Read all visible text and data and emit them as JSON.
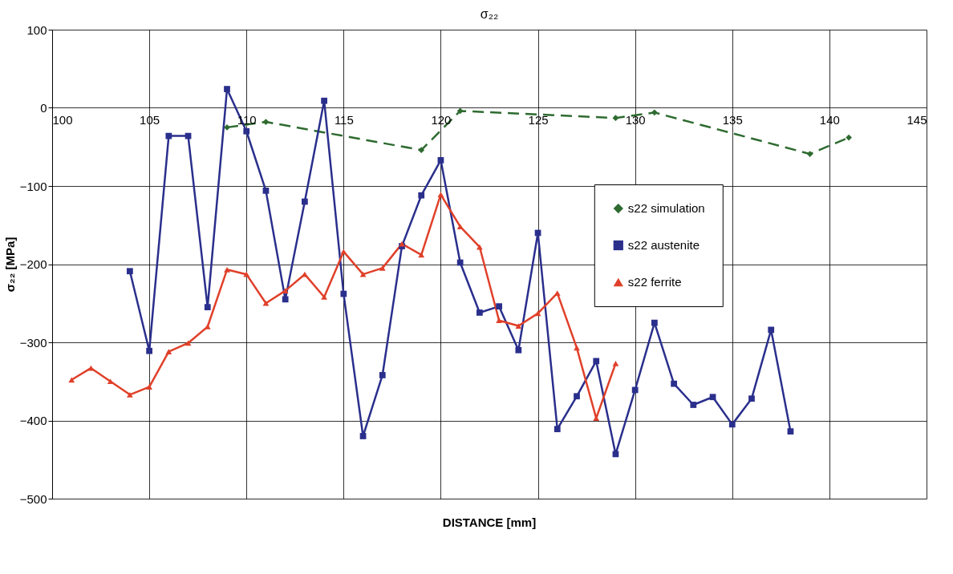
{
  "chart_data": {
    "type": "line",
    "title": "σ₂₂",
    "xlabel": "DISTANCE [mm]",
    "ylabel": "σ₂₂ [MPa]",
    "xlim": [
      100,
      145
    ],
    "xticks": [
      100,
      105,
      110,
      115,
      120,
      125,
      130,
      135,
      140,
      145
    ],
    "ylim": [
      -500,
      100
    ],
    "yticks": [
      -500,
      -400,
      -300,
      -200,
      -100,
      0,
      100
    ],
    "grid": true,
    "legend": "right",
    "series": [
      {
        "name": "s22 simulation",
        "color": "#2e6b30",
        "marker": "diamond",
        "line_style": "dashed",
        "x": [
          109,
          111,
          119,
          121,
          129,
          131,
          139,
          141
        ],
        "values": [
          -25,
          -18,
          -54,
          -4,
          -13,
          -6,
          -59,
          -38
        ]
      },
      {
        "name": "s22 austenite",
        "color": "#2a2f8c",
        "marker": "square",
        "line_style": "solid",
        "x": [
          104,
          105,
          106,
          107,
          108,
          109,
          110,
          111,
          112,
          113,
          114,
          115,
          116,
          117,
          118,
          119,
          120,
          121,
          122,
          123,
          124,
          125,
          126,
          127,
          128,
          129,
          130,
          131,
          132,
          133,
          134,
          135,
          136,
          137,
          138
        ],
        "values": [
          -209,
          -311,
          -36,
          -36,
          -255,
          24,
          -30,
          -106,
          -245,
          -120,
          9,
          -238,
          -420,
          -342,
          -177,
          -112,
          -67,
          -198,
          -262,
          -254,
          -310,
          -160,
          -411,
          -369,
          -324,
          -443,
          -361,
          -275,
          -353,
          -380,
          -370,
          -405,
          -372,
          -284,
          -414
        ]
      },
      {
        "name": "s22 ferrite",
        "color": "#e0402a",
        "marker": "triangle",
        "line_style": "solid",
        "x": [
          101,
          102,
          103,
          104,
          105,
          106,
          107,
          108,
          109,
          110,
          111,
          112,
          113,
          114,
          115,
          116,
          117,
          118,
          119,
          120,
          121,
          122,
          123,
          124,
          125,
          126,
          127,
          128,
          129
        ],
        "values": [
          -348,
          -333,
          -350,
          -367,
          -357,
          -312,
          -301,
          -280,
          -207,
          -213,
          -250,
          -234,
          -213,
          -242,
          -184,
          -213,
          -205,
          -174,
          -188,
          -111,
          -152,
          -178,
          -272,
          -279,
          -263,
          -237,
          -307,
          -397,
          -327
        ]
      }
    ]
  }
}
